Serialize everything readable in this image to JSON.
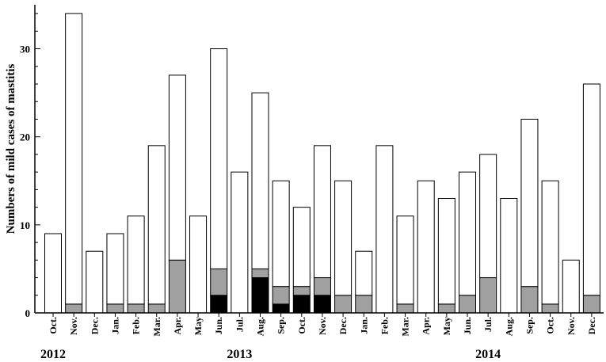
{
  "chart_data": {
    "type": "bar",
    "stacked": true,
    "ylabel": "Numbers of mild cases of mastitis",
    "xlabel": "",
    "ylim": [
      0,
      35
    ],
    "yticks": [
      0,
      10,
      20,
      30
    ],
    "grid": false,
    "categories": [
      "Oct.",
      "Nov.",
      "Dec.",
      "Jan.",
      "Feb.",
      "Mar.",
      "Apr.",
      "May",
      "Jun.",
      "Jul.",
      "Aug.",
      "Sep.",
      "Oct.",
      "Nov.",
      "Dec.",
      "Jan.",
      "Feb.",
      "Mar.",
      "Apr.",
      "May",
      "Jun.",
      "Jul.",
      "Aug.",
      "Sep.",
      "Oct.",
      "Nov.",
      "Dec."
    ],
    "year_labels": [
      {
        "label": "2012",
        "category_index": 0
      },
      {
        "label": "2013",
        "category_index": 9
      },
      {
        "label": "2014",
        "category_index": 21
      }
    ],
    "series": [
      {
        "color": "#000000",
        "values": [
          0,
          0,
          0,
          0,
          0,
          0,
          0,
          0,
          2,
          0,
          4,
          1,
          2,
          2,
          0,
          0,
          0,
          0,
          0,
          0,
          0,
          0,
          0,
          0,
          0,
          0,
          0
        ]
      },
      {
        "color": "#a0a0a0",
        "values": [
          0,
          1,
          0,
          1,
          1,
          1,
          6,
          0,
          3,
          0,
          1,
          2,
          1,
          2,
          2,
          2,
          0,
          1,
          0,
          1,
          2,
          4,
          0,
          3,
          1,
          0,
          2
        ]
      },
      {
        "color": "#ffffff",
        "values": [
          9,
          33,
          7,
          8,
          10,
          18,
          21,
          11,
          25,
          16,
          20,
          12,
          9,
          15,
          13,
          5,
          19,
          10,
          15,
          12,
          14,
          14,
          13,
          19,
          14,
          6,
          24
        ]
      }
    ]
  }
}
